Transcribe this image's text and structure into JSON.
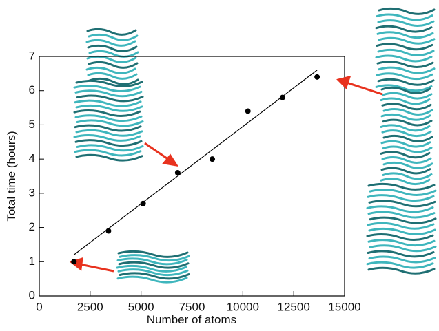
{
  "chart_data": {
    "type": "scatter",
    "x_label": "Number of atoms",
    "y_label": "Total time (hours)",
    "xlim": [
      0,
      15000
    ],
    "xticks": [
      0,
      2500,
      5000,
      7500,
      10000,
      12500,
      15000
    ],
    "ylim": [
      0,
      7
    ],
    "yticks": [
      0,
      1,
      2,
      3,
      4,
      5,
      6,
      7
    ],
    "series": [
      {
        "type": "scatter",
        "color": "#000000",
        "x": [
          1700,
          3400,
          5100,
          6800,
          8500,
          10250,
          11950,
          13650
        ],
        "values": [
          1.0,
          1.9,
          2.7,
          3.6,
          4.0,
          5.4,
          5.8,
          6.4
        ]
      },
      {
        "type": "line",
        "color": "#000000",
        "x": [
          1700,
          13650
        ],
        "values": [
          1.2,
          6.6
        ]
      }
    ]
  }
}
